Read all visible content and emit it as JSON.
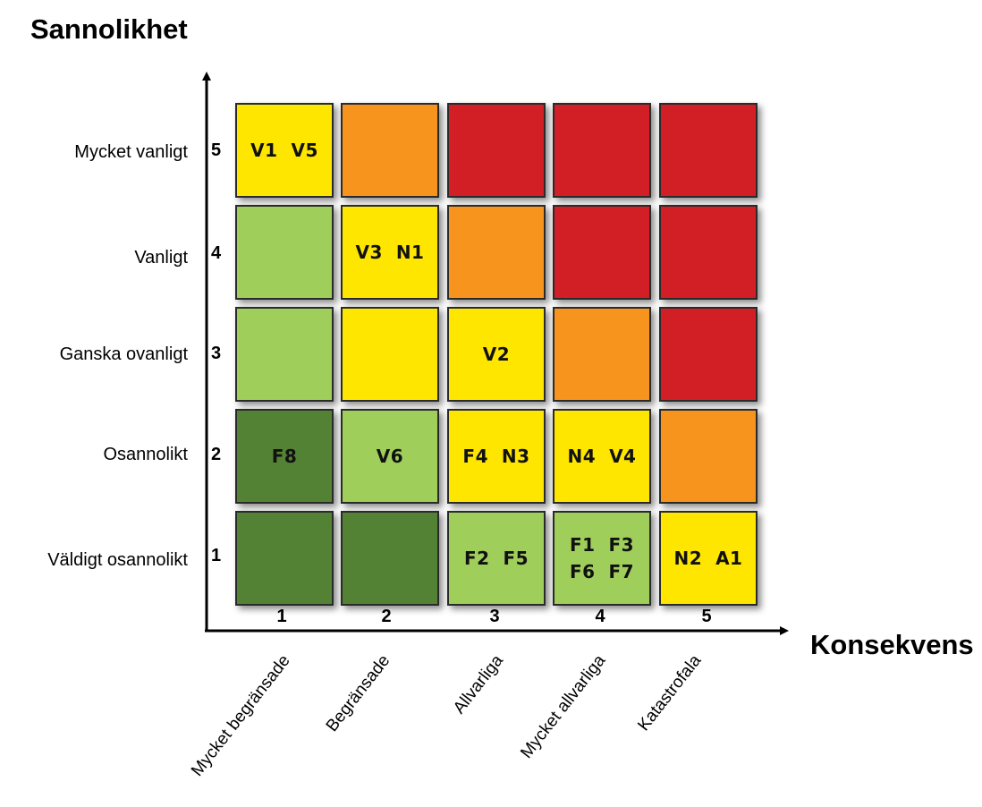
{
  "y_axis": {
    "title": "Sannolikhet",
    "levels": [
      {
        "value": "5",
        "label": "Mycket vanligt"
      },
      {
        "value": "4",
        "label": "Vanligt"
      },
      {
        "value": "3",
        "label": "Ganska ovanligt"
      },
      {
        "value": "2",
        "label": "Osannolikt"
      },
      {
        "value": "1",
        "label": "Väldigt osannolikt"
      }
    ]
  },
  "x_axis": {
    "title": "Konsekvens",
    "levels": [
      {
        "value": "1",
        "label": "Mycket begränsade"
      },
      {
        "value": "2",
        "label": "Begränsade"
      },
      {
        "value": "3",
        "label": "Allvarliga"
      },
      {
        "value": "4",
        "label": "Mycket allvarliga"
      },
      {
        "value": "5",
        "label": "Katastrofala"
      }
    ]
  },
  "colors": {
    "dark_green": "#548235",
    "light_green": "#9fcf5a",
    "yellow": "#ffe600",
    "orange": "#f7941d",
    "red": "#d21f26"
  },
  "matrix": [
    {
      "likelihood": 5,
      "cells": [
        {
          "consequence": 1,
          "color": "yellow",
          "text": "V1  V5"
        },
        {
          "consequence": 2,
          "color": "orange",
          "text": ""
        },
        {
          "consequence": 3,
          "color": "red",
          "text": ""
        },
        {
          "consequence": 4,
          "color": "red",
          "text": ""
        },
        {
          "consequence": 5,
          "color": "red",
          "text": ""
        }
      ]
    },
    {
      "likelihood": 4,
      "cells": [
        {
          "consequence": 1,
          "color": "light_green",
          "text": ""
        },
        {
          "consequence": 2,
          "color": "yellow",
          "text": "V3  N1"
        },
        {
          "consequence": 3,
          "color": "orange",
          "text": ""
        },
        {
          "consequence": 4,
          "color": "red",
          "text": ""
        },
        {
          "consequence": 5,
          "color": "red",
          "text": ""
        }
      ]
    },
    {
      "likelihood": 3,
      "cells": [
        {
          "consequence": 1,
          "color": "light_green",
          "text": ""
        },
        {
          "consequence": 2,
          "color": "yellow",
          "text": ""
        },
        {
          "consequence": 3,
          "color": "yellow",
          "text": "V2"
        },
        {
          "consequence": 4,
          "color": "orange",
          "text": ""
        },
        {
          "consequence": 5,
          "color": "red",
          "text": ""
        }
      ]
    },
    {
      "likelihood": 2,
      "cells": [
        {
          "consequence": 1,
          "color": "dark_green",
          "text": "F8"
        },
        {
          "consequence": 2,
          "color": "light_green",
          "text": "V6"
        },
        {
          "consequence": 3,
          "color": "yellow",
          "text": "F4  N3"
        },
        {
          "consequence": 4,
          "color": "yellow",
          "text": "N4  V4"
        },
        {
          "consequence": 5,
          "color": "orange",
          "text": ""
        }
      ]
    },
    {
      "likelihood": 1,
      "cells": [
        {
          "consequence": 1,
          "color": "dark_green",
          "text": ""
        },
        {
          "consequence": 2,
          "color": "dark_green",
          "text": ""
        },
        {
          "consequence": 3,
          "color": "light_green",
          "text": "F2  F5"
        },
        {
          "consequence": 4,
          "color": "light_green",
          "text": "F1  F3\nF6  F7"
        },
        {
          "consequence": 5,
          "color": "yellow",
          "text": "N2  A1"
        }
      ]
    }
  ]
}
